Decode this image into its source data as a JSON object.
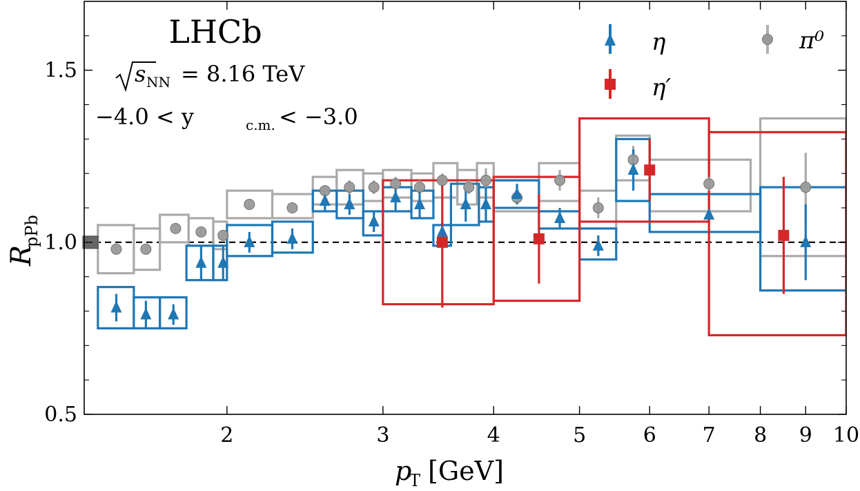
{
  "chart_data": {
    "type": "scatter",
    "experiment_label": "LHCb",
    "energy_label_sqrt": "s",
    "energy_label_sub": "NN",
    "energy_label_rest": "= 8.16 TeV",
    "rapidity_label_pre": "−4.0 < y",
    "rapidity_label_sub": "c.m.",
    "rapidity_label_post": "< −3.0",
    "xlabel_main": "p",
    "xlabel_sub": "T",
    "xlabel_unit": "[GeV]",
    "ylabel_main": "R",
    "ylabel_sub": "pPb",
    "x_scale": "log",
    "xlim": [
      1.38,
      10
    ],
    "ylim": [
      0.5,
      1.7
    ],
    "x_tick_values": [
      2,
      3,
      4,
      5,
      6,
      7,
      8,
      9,
      10
    ],
    "x_tick_labels": [
      "2",
      "3",
      "4",
      "5",
      "6",
      "7",
      "8",
      "9",
      "10"
    ],
    "y_tick_values": [
      0.5,
      1.0,
      1.5
    ],
    "y_tick_labels": [
      "0.5",
      "1.0",
      "1.5"
    ],
    "reference_line": 1.0,
    "normalization_box": [
      0.98,
      1.02
    ],
    "legend": [
      "η",
      "η′",
      "π⁰"
    ],
    "legend_placement": "top-right",
    "colors": {
      "eta": "#1f77b4",
      "etaprime": "#d62728",
      "pi0": "#9a9a9a"
    },
    "series": [
      {
        "name": "π⁰",
        "marker": "circle",
        "color": "#9a9a9a",
        "points": [
          {
            "x": 1.5,
            "y": 0.98,
            "xlo": 1.43,
            "xhi": 1.57,
            "stat": 0.01,
            "syslo": 0.91,
            "syshi": 1.05
          },
          {
            "x": 1.62,
            "y": 0.98,
            "xlo": 1.57,
            "xhi": 1.68,
            "stat": 0.01,
            "syslo": 0.92,
            "syshi": 1.04
          },
          {
            "x": 1.75,
            "y": 1.04,
            "xlo": 1.68,
            "xhi": 1.81,
            "stat": 0.01,
            "syslo": 1.0,
            "syshi": 1.08
          },
          {
            "x": 1.87,
            "y": 1.03,
            "xlo": 1.81,
            "xhi": 1.93,
            "stat": 0.01,
            "syslo": 0.99,
            "syshi": 1.07
          },
          {
            "x": 1.98,
            "y": 1.02,
            "xlo": 1.93,
            "xhi": 2.0,
            "stat": 0.01,
            "syslo": 0.98,
            "syshi": 1.06
          },
          {
            "x": 2.12,
            "y": 1.11,
            "xlo": 2.0,
            "xhi": 2.25,
            "stat": 0.01,
            "syslo": 1.07,
            "syshi": 1.15
          },
          {
            "x": 2.37,
            "y": 1.1,
            "xlo": 2.25,
            "xhi": 2.5,
            "stat": 0.01,
            "syslo": 1.07,
            "syshi": 1.14
          },
          {
            "x": 2.58,
            "y": 1.15,
            "xlo": 2.5,
            "xhi": 2.66,
            "stat": 0.015,
            "syslo": 1.11,
            "syshi": 1.19
          },
          {
            "x": 2.75,
            "y": 1.16,
            "xlo": 2.66,
            "xhi": 2.85,
            "stat": 0.02,
            "syslo": 1.11,
            "syshi": 1.21
          },
          {
            "x": 2.93,
            "y": 1.16,
            "xlo": 2.85,
            "xhi": 3.0,
            "stat": 0.02,
            "syslo": 1.12,
            "syshi": 1.2
          },
          {
            "x": 3.1,
            "y": 1.17,
            "xlo": 3.0,
            "xhi": 3.23,
            "stat": 0.02,
            "syslo": 1.13,
            "syshi": 1.21
          },
          {
            "x": 3.3,
            "y": 1.16,
            "xlo": 3.23,
            "xhi": 3.42,
            "stat": 0.02,
            "syslo": 1.12,
            "syshi": 1.2
          },
          {
            "x": 3.5,
            "y": 1.18,
            "xlo": 3.42,
            "xhi": 3.64,
            "stat": 0.02,
            "syslo": 1.13,
            "syshi": 1.23
          },
          {
            "x": 3.75,
            "y": 1.16,
            "xlo": 3.64,
            "xhi": 3.83,
            "stat": 0.02,
            "syslo": 1.11,
            "syshi": 1.21
          },
          {
            "x": 3.92,
            "y": 1.18,
            "xlo": 3.83,
            "xhi": 4.0,
            "stat": 0.035,
            "syslo": 1.13,
            "syshi": 1.23
          },
          {
            "x": 4.25,
            "y": 1.13,
            "xlo": 4.0,
            "xhi": 4.5,
            "stat": 0.02,
            "syslo": 1.09,
            "syshi": 1.18
          },
          {
            "x": 4.75,
            "y": 1.18,
            "xlo": 4.5,
            "xhi": 5.0,
            "stat": 0.03,
            "syslo": 1.12,
            "syshi": 1.23
          },
          {
            "x": 5.25,
            "y": 1.1,
            "xlo": 5.0,
            "xhi": 5.5,
            "stat": 0.03,
            "syslo": 1.04,
            "syshi": 1.15
          },
          {
            "x": 5.75,
            "y": 1.24,
            "xlo": 5.5,
            "xhi": 6.0,
            "stat": 0.04,
            "syslo": 1.18,
            "syshi": 1.31
          },
          {
            "x": 7.0,
            "y": 1.17,
            "xlo": 6.0,
            "xhi": 7.8,
            "stat": 0.02,
            "syslo": 1.09,
            "syshi": 1.24
          },
          {
            "x": 9.0,
            "y": 1.16,
            "xlo": 8.0,
            "xhi": 10.0,
            "stat": 0.1,
            "syslo": 0.96,
            "syshi": 1.36
          }
        ]
      },
      {
        "name": "η",
        "marker": "triangle",
        "color": "#1f77b4",
        "points": [
          {
            "x": 1.5,
            "y": 0.81,
            "xlo": 1.43,
            "xhi": 1.57,
            "stat": 0.04,
            "syslo": 0.75,
            "syshi": 0.87
          },
          {
            "x": 1.62,
            "y": 0.79,
            "xlo": 1.57,
            "xhi": 1.68,
            "stat": 0.04,
            "syslo": 0.75,
            "syshi": 0.84
          },
          {
            "x": 1.74,
            "y": 0.79,
            "xlo": 1.68,
            "xhi": 1.8,
            "stat": 0.03,
            "syslo": 0.75,
            "syshi": 0.84
          },
          {
            "x": 1.87,
            "y": 0.94,
            "xlo": 1.8,
            "xhi": 1.93,
            "stat": 0.05,
            "syslo": 0.89,
            "syshi": 0.99
          },
          {
            "x": 1.98,
            "y": 0.94,
            "xlo": 1.93,
            "xhi": 2.0,
            "stat": 0.05,
            "syslo": 0.89,
            "syshi": 0.99
          },
          {
            "x": 2.12,
            "y": 1.0,
            "xlo": 2.0,
            "xhi": 2.25,
            "stat": 0.03,
            "syslo": 0.96,
            "syshi": 1.05
          },
          {
            "x": 2.37,
            "y": 1.01,
            "xlo": 2.25,
            "xhi": 2.5,
            "stat": 0.03,
            "syslo": 0.97,
            "syshi": 1.06
          },
          {
            "x": 2.58,
            "y": 1.12,
            "xlo": 2.5,
            "xhi": 2.66,
            "stat": 0.03,
            "syslo": 1.09,
            "syshi": 1.15
          },
          {
            "x": 2.75,
            "y": 1.11,
            "xlo": 2.66,
            "xhi": 2.85,
            "stat": 0.03,
            "syslo": 1.07,
            "syshi": 1.15
          },
          {
            "x": 2.93,
            "y": 1.06,
            "xlo": 2.85,
            "xhi": 3.0,
            "stat": 0.03,
            "syslo": 1.02,
            "syshi": 1.09
          },
          {
            "x": 3.1,
            "y": 1.13,
            "xlo": 3.0,
            "xhi": 3.23,
            "stat": 0.04,
            "syslo": 1.09,
            "syshi": 1.16
          },
          {
            "x": 3.3,
            "y": 1.11,
            "xlo": 3.23,
            "xhi": 3.42,
            "stat": 0.04,
            "syslo": 1.07,
            "syshi": 1.15
          },
          {
            "x": 3.5,
            "y": 1.03,
            "xlo": 3.42,
            "xhi": 3.58,
            "stat": 0.03,
            "syslo": 0.99,
            "syshi": 1.05
          },
          {
            "x": 3.72,
            "y": 1.11,
            "xlo": 3.58,
            "xhi": 3.85,
            "stat": 0.05,
            "syslo": 1.05,
            "syshi": 1.17
          },
          {
            "x": 3.92,
            "y": 1.11,
            "xlo": 3.85,
            "xhi": 4.0,
            "stat": 0.05,
            "syslo": 1.06,
            "syshi": 1.16
          },
          {
            "x": 4.25,
            "y": 1.14,
            "xlo": 4.0,
            "xhi": 4.5,
            "stat": 0.03,
            "syslo": 1.1,
            "syshi": 1.18
          },
          {
            "x": 4.75,
            "y": 1.07,
            "xlo": 4.5,
            "xhi": 5.0,
            "stat": 0.03,
            "syslo": 1.04,
            "syshi": 1.09
          },
          {
            "x": 5.25,
            "y": 0.99,
            "xlo": 5.0,
            "xhi": 5.5,
            "stat": 0.03,
            "syslo": 0.95,
            "syshi": 1.04
          },
          {
            "x": 5.75,
            "y": 1.21,
            "xlo": 5.5,
            "xhi": 6.0,
            "stat": 0.06,
            "syslo": 1.12,
            "syshi": 1.3
          },
          {
            "x": 7.0,
            "y": 1.08,
            "xlo": 6.0,
            "xhi": 8.0,
            "stat": 0.01,
            "syslo": 1.03,
            "syshi": 1.14
          },
          {
            "x": 9.0,
            "y": 1.0,
            "xlo": 8.0,
            "xhi": 10.0,
            "stat": 0.11,
            "syslo": 0.86,
            "syshi": 1.16
          }
        ]
      },
      {
        "name": "η′",
        "marker": "square",
        "color": "#d62728",
        "points": [
          {
            "x": 3.5,
            "y": 1.0,
            "xlo": 3.0,
            "xhi": 4.0,
            "stat": 0.19,
            "syslo": 0.82,
            "syshi": 1.18
          },
          {
            "x": 4.5,
            "y": 1.01,
            "xlo": 4.0,
            "xhi": 5.0,
            "stat": 0.13,
            "syslo": 0.83,
            "syshi": 1.19
          },
          {
            "x": 6.0,
            "y": 1.21,
            "xlo": 5.0,
            "xhi": 7.0,
            "stat": 0.09,
            "syslo": 1.06,
            "syshi": 1.36
          },
          {
            "x": 8.5,
            "y": 1.02,
            "xlo": 7.0,
            "xhi": 10.0,
            "stat": 0.17,
            "syslo": 0.73,
            "syshi": 1.32
          }
        ]
      }
    ]
  }
}
